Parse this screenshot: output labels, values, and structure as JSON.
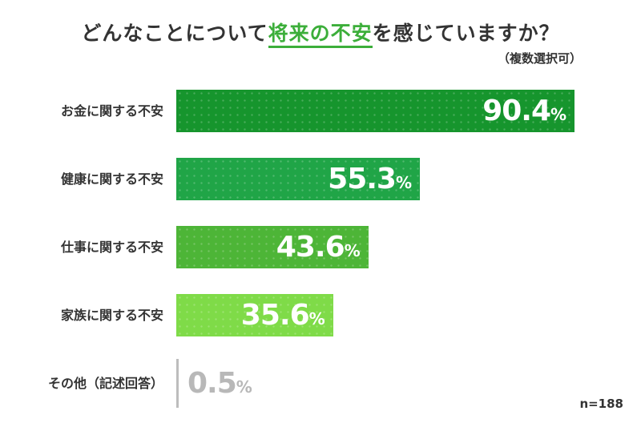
{
  "title": {
    "before": "どんなことについて",
    "highlight": "将来の不安",
    "after": "を感じていますか？"
  },
  "subtitle": "（複数選択可）",
  "sample_size": "n=188",
  "chart_data": {
    "type": "bar",
    "orientation": "horizontal",
    "xlim": [
      0,
      100
    ],
    "grid": false,
    "legend": "none",
    "categories": [
      "お金に関する不安",
      "健康に関する不安",
      "仕事に関する不安",
      "家族に関する不安",
      "その他（記述回答）"
    ],
    "values": [
      90.4,
      55.3,
      43.6,
      35.6,
      0.5
    ],
    "value_number_labels": [
      "90.4",
      "55.3",
      "43.6",
      "35.6",
      "0.5"
    ],
    "value_unit": "%",
    "colors": [
      "#16952d",
      "#20a547",
      "#4db537",
      "#7fdb48",
      "#bdbdbd"
    ]
  }
}
